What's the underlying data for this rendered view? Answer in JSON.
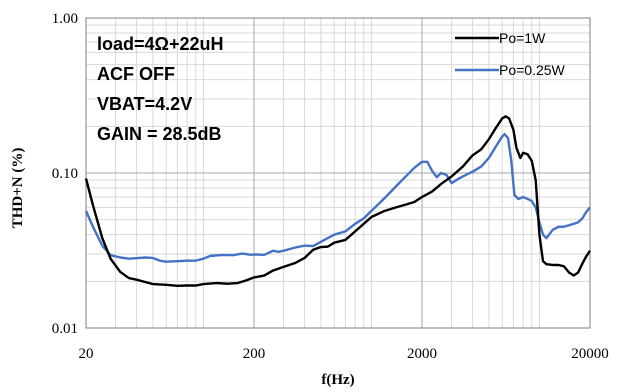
{
  "chart_data": {
    "type": "line",
    "ylabel": "THD+N (%)",
    "xlabel": "f(Hz)",
    "x_scale": "log",
    "y_scale": "log",
    "xlim": [
      20,
      20000
    ],
    "ylim": [
      0.01,
      1.0
    ],
    "x_ticks": [
      "20",
      "200",
      "2000",
      "20000"
    ],
    "y_ticks": [
      "1.00",
      "0.10",
      "0.01"
    ],
    "grid": true,
    "legend_position": "top-right",
    "annotations": [
      "load=4Ω+22uH",
      "ACF OFF",
      "VBAT=4.2V",
      "GAIN = 28.5dB"
    ],
    "series": [
      {
        "name": "Po=1W",
        "color": "#000000",
        "points": [
          [
            20,
            0.092
          ],
          [
            22,
            0.062
          ],
          [
            25,
            0.038
          ],
          [
            28,
            0.028
          ],
          [
            32,
            0.023
          ],
          [
            36,
            0.021
          ],
          [
            40,
            0.0205
          ],
          [
            45,
            0.0198
          ],
          [
            50,
            0.0192
          ],
          [
            60,
            0.019
          ],
          [
            70,
            0.0187
          ],
          [
            80,
            0.0188
          ],
          [
            90,
            0.0188
          ],
          [
            100,
            0.0192
          ],
          [
            120,
            0.0195
          ],
          [
            140,
            0.0193
          ],
          [
            160,
            0.0195
          ],
          [
            180,
            0.0203
          ],
          [
            200,
            0.0212
          ],
          [
            230,
            0.0218
          ],
          [
            260,
            0.0235
          ],
          [
            300,
            0.0248
          ],
          [
            350,
            0.0262
          ],
          [
            400,
            0.0283
          ],
          [
            450,
            0.032
          ],
          [
            500,
            0.0333
          ],
          [
            550,
            0.0335
          ],
          [
            600,
            0.0355
          ],
          [
            700,
            0.037
          ],
          [
            800,
            0.042
          ],
          [
            900,
            0.047
          ],
          [
            1000,
            0.052
          ],
          [
            1200,
            0.057
          ],
          [
            1400,
            0.06
          ],
          [
            1600,
            0.0625
          ],
          [
            1800,
            0.065
          ],
          [
            2000,
            0.07
          ],
          [
            2300,
            0.076
          ],
          [
            2600,
            0.085
          ],
          [
            3000,
            0.095
          ],
          [
            3500,
            0.11
          ],
          [
            4000,
            0.13
          ],
          [
            4500,
            0.142
          ],
          [
            5000,
            0.165
          ],
          [
            5500,
            0.195
          ],
          [
            6000,
            0.225
          ],
          [
            6300,
            0.232
          ],
          [
            6600,
            0.225
          ],
          [
            7000,
            0.19
          ],
          [
            7300,
            0.145
          ],
          [
            7700,
            0.125
          ],
          [
            8000,
            0.135
          ],
          [
            8500,
            0.132
          ],
          [
            9000,
            0.12
          ],
          [
            9500,
            0.09
          ],
          [
            10000,
            0.04
          ],
          [
            10500,
            0.027
          ],
          [
            11000,
            0.0258
          ],
          [
            12000,
            0.0255
          ],
          [
            13000,
            0.0255
          ],
          [
            14000,
            0.025
          ],
          [
            15000,
            0.0228
          ],
          [
            16000,
            0.0218
          ],
          [
            17000,
            0.0228
          ],
          [
            18000,
            0.026
          ],
          [
            19000,
            0.029
          ],
          [
            20000,
            0.0315
          ]
        ]
      },
      {
        "name": "Po=0.25W",
        "color": "#4472c4",
        "points": [
          [
            20,
            0.057
          ],
          [
            22,
            0.045
          ],
          [
            25,
            0.034
          ],
          [
            28,
            0.0295
          ],
          [
            32,
            0.0285
          ],
          [
            36,
            0.028
          ],
          [
            40,
            0.0282
          ],
          [
            45,
            0.0285
          ],
          [
            50,
            0.0283
          ],
          [
            55,
            0.0272
          ],
          [
            60,
            0.0268
          ],
          [
            70,
            0.027
          ],
          [
            80,
            0.0272
          ],
          [
            90,
            0.0272
          ],
          [
            100,
            0.028
          ],
          [
            110,
            0.0292
          ],
          [
            130,
            0.0296
          ],
          [
            150,
            0.0295
          ],
          [
            170,
            0.0302
          ],
          [
            190,
            0.0297
          ],
          [
            210,
            0.0298
          ],
          [
            230,
            0.0296
          ],
          [
            260,
            0.0315
          ],
          [
            280,
            0.031
          ],
          [
            300,
            0.0315
          ],
          [
            350,
            0.033
          ],
          [
            400,
            0.034
          ],
          [
            450,
            0.0338
          ],
          [
            500,
            0.036
          ],
          [
            600,
            0.04
          ],
          [
            700,
            0.042
          ],
          [
            800,
            0.047
          ],
          [
            900,
            0.051
          ],
          [
            1000,
            0.057
          ],
          [
            1200,
            0.069
          ],
          [
            1400,
            0.082
          ],
          [
            1600,
            0.095
          ],
          [
            1800,
            0.108
          ],
          [
            2000,
            0.118
          ],
          [
            2150,
            0.118
          ],
          [
            2300,
            0.103
          ],
          [
            2450,
            0.094
          ],
          [
            2600,
            0.1
          ],
          [
            2800,
            0.097
          ],
          [
            3000,
            0.086
          ],
          [
            3200,
            0.09
          ],
          [
            3500,
            0.095
          ],
          [
            4000,
            0.102
          ],
          [
            4500,
            0.11
          ],
          [
            5000,
            0.125
          ],
          [
            5500,
            0.148
          ],
          [
            6000,
            0.172
          ],
          [
            6200,
            0.178
          ],
          [
            6500,
            0.168
          ],
          [
            6800,
            0.12
          ],
          [
            7100,
            0.072
          ],
          [
            7500,
            0.068
          ],
          [
            8000,
            0.07
          ],
          [
            8500,
            0.068
          ],
          [
            9000,
            0.066
          ],
          [
            9500,
            0.06
          ],
          [
            10000,
            0.048
          ],
          [
            10500,
            0.04
          ],
          [
            11000,
            0.038
          ],
          [
            12000,
            0.043
          ],
          [
            13000,
            0.045
          ],
          [
            14000,
            0.045
          ],
          [
            15000,
            0.046
          ],
          [
            16000,
            0.047
          ],
          [
            17000,
            0.048
          ],
          [
            18000,
            0.051
          ],
          [
            19000,
            0.056
          ],
          [
            20000,
            0.06
          ]
        ]
      }
    ]
  }
}
